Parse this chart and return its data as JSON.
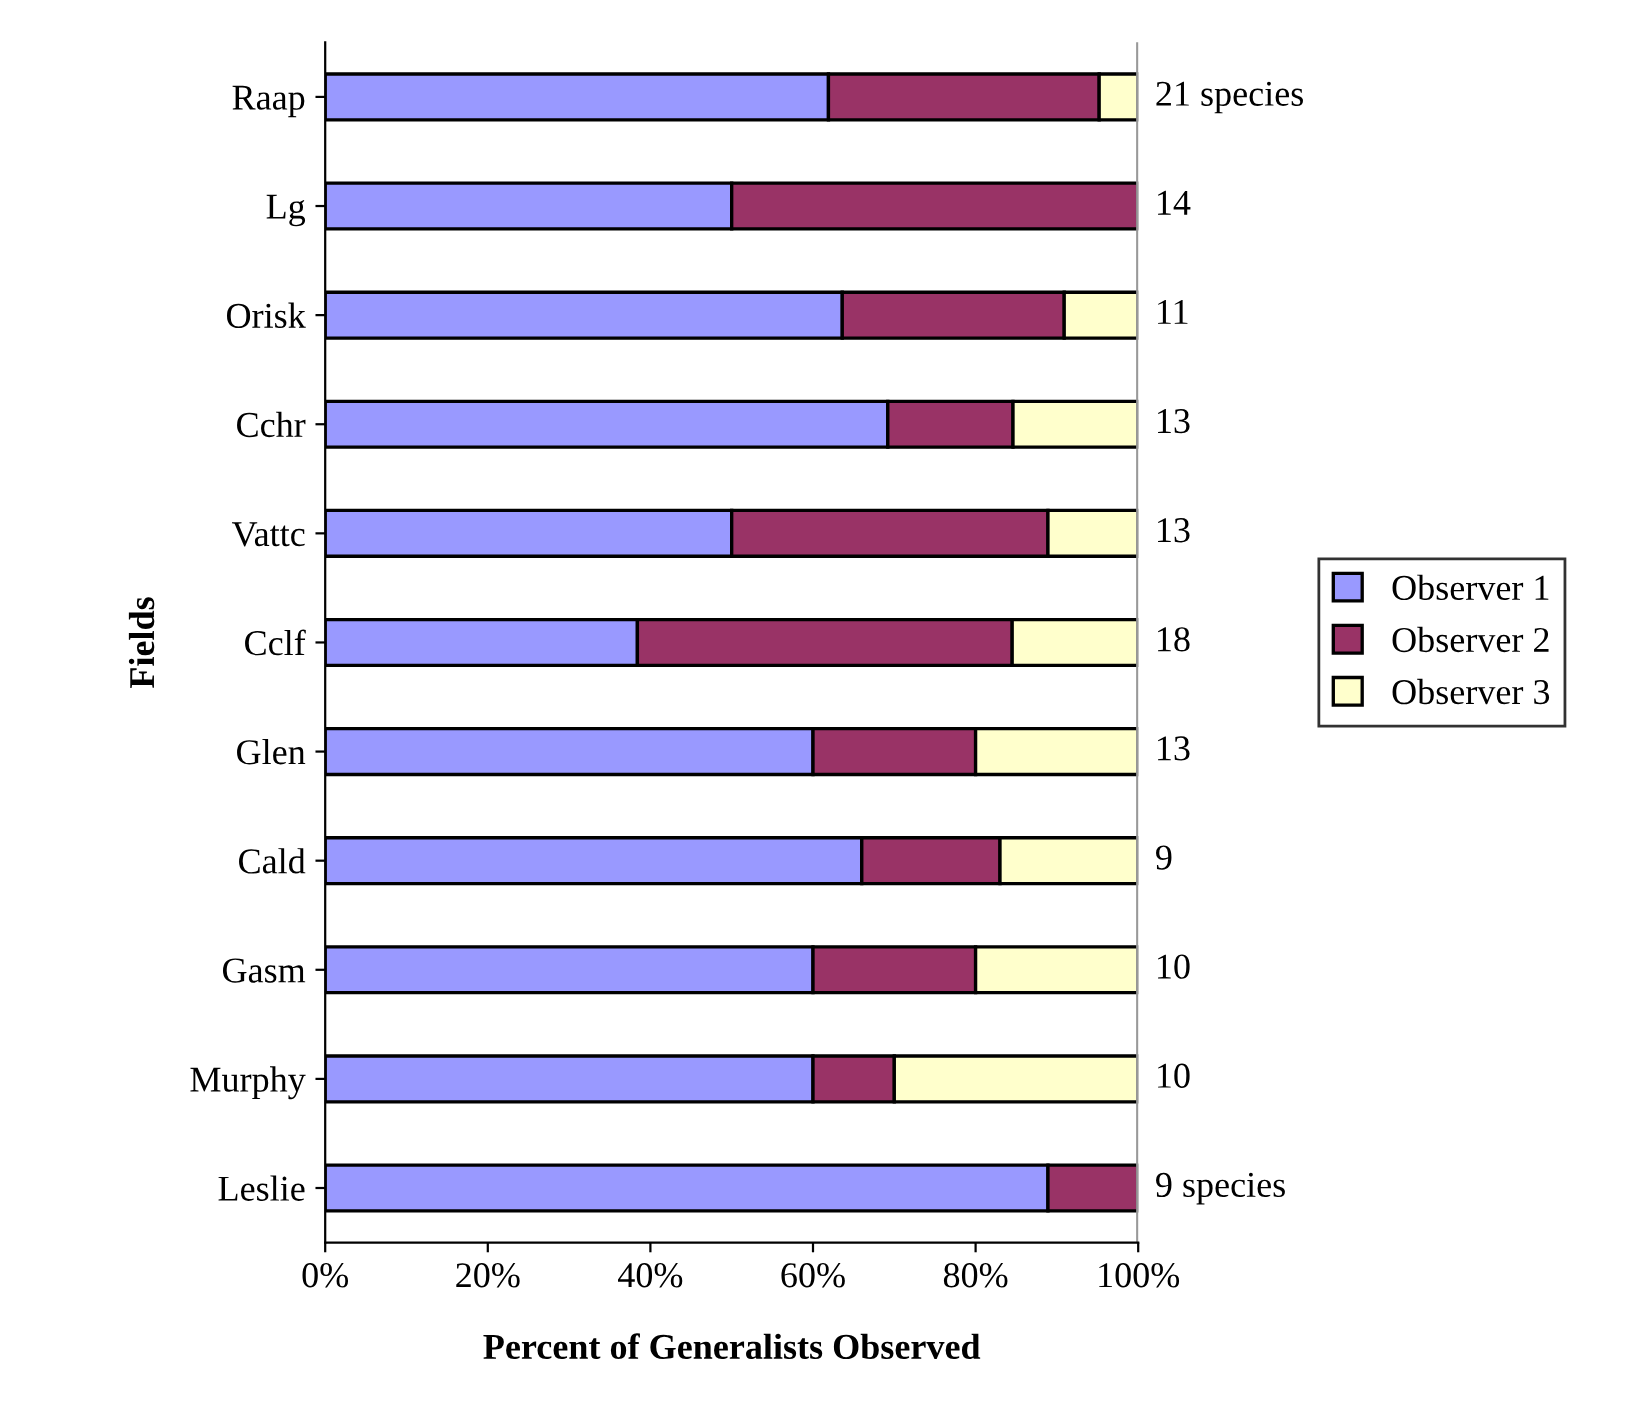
{
  "chart_data": {
    "type": "bar",
    "orientation": "horizontal",
    "stacked": true,
    "xlabel": "Percent of Generalists Observed",
    "ylabel": "Fields",
    "categories": [
      "Raap",
      "Lg",
      "Orisk",
      "Cchr",
      "Vattc",
      "Cclf",
      "Glen",
      "Cald",
      "Gasm",
      "Murphy",
      "Leslie"
    ],
    "series": [
      {
        "name": "Observer 1",
        "color": "#9999ff",
        "values": [
          61.9,
          50,
          63.6,
          69.2,
          50,
          38.4,
          60,
          66,
          60,
          60,
          88.9
        ]
      },
      {
        "name": "Observer 2",
        "color": "#993366",
        "values": [
          33.3,
          50,
          27.3,
          15.4,
          38.9,
          46.1,
          20,
          17,
          20,
          10,
          11.1
        ]
      },
      {
        "name": "Observer 3",
        "color": "#ffffcc",
        "values": [
          4.8,
          null,
          9.1,
          15.4,
          11.1,
          15.5,
          20,
          17,
          20,
          30,
          null
        ]
      }
    ],
    "xlim": [
      0,
      100
    ],
    "xticks": [
      {
        "value": 0,
        "label": "0%"
      },
      {
        "value": 20,
        "label": "20%"
      },
      {
        "value": 40,
        "label": "40%"
      },
      {
        "value": 60,
        "label": "60%"
      },
      {
        "value": 80,
        "label": "80%"
      },
      {
        "value": 100,
        "label": "100%"
      }
    ],
    "annotations": [
      "21 species",
      "14",
      "11",
      "13",
      "13",
      "18",
      "13",
      "9",
      "10",
      "10",
      "9 species"
    ],
    "legend": "right",
    "grid": false
  }
}
